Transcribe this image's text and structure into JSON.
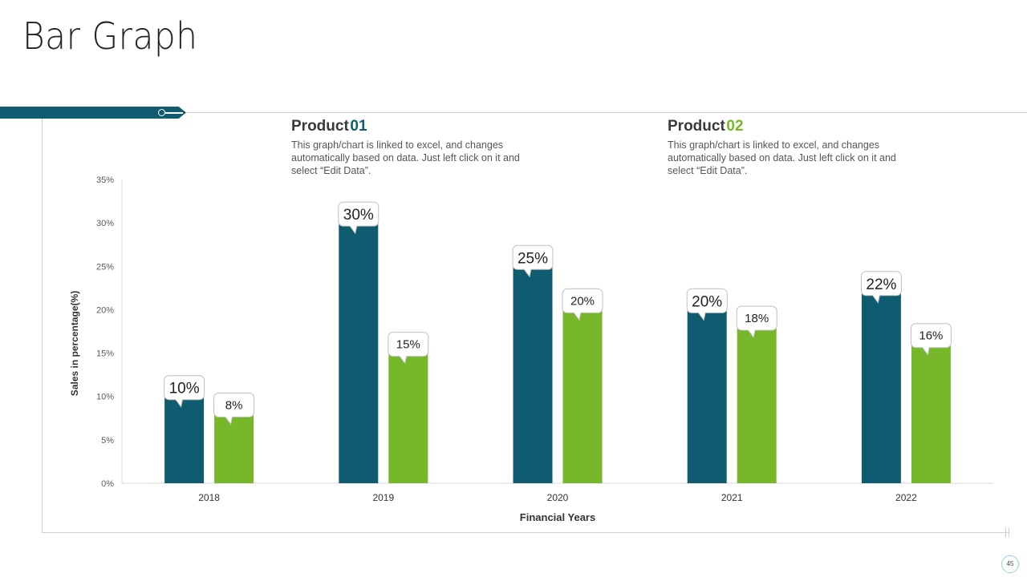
{
  "slide": {
    "title": "Bar Graph",
    "page_number": "45"
  },
  "product1": {
    "label": "Product",
    "number": "01",
    "description": "This graph/chart is linked to excel, and changes automatically based on data. Just left click on it and select “Edit Data”."
  },
  "product2": {
    "label": "Product",
    "number": "02",
    "description": "This graph/chart is linked to excel, and changes automatically based on data. Just left click on it and select “Edit Data”."
  },
  "colors": {
    "product1": "#0f5c70",
    "product2": "#76b82a",
    "accent": "#0f5c70"
  },
  "chart_data": {
    "type": "bar",
    "categories": [
      "2018",
      "2019",
      "2020",
      "2021",
      "2022"
    ],
    "series": [
      {
        "name": "Product 01",
        "values": [
          10,
          30,
          25,
          20,
          22
        ],
        "labels": [
          "10%",
          "30%",
          "25%",
          "20%",
          "22%"
        ]
      },
      {
        "name": "Product 02",
        "values": [
          8,
          15,
          20,
          18,
          16
        ],
        "labels": [
          "8%",
          "15%",
          "20%",
          "18%",
          "16%"
        ]
      }
    ],
    "xlabel": "Financial Years",
    "ylabel": "Sales in percentage(%)",
    "ylim": [
      0,
      35
    ],
    "yticks": [
      0,
      5,
      10,
      15,
      20,
      25,
      30,
      35
    ],
    "ytick_labels": [
      "0%",
      "5%",
      "10%",
      "15%",
      "20%",
      "25%",
      "30%",
      "35%"
    ],
    "grid": false
  }
}
